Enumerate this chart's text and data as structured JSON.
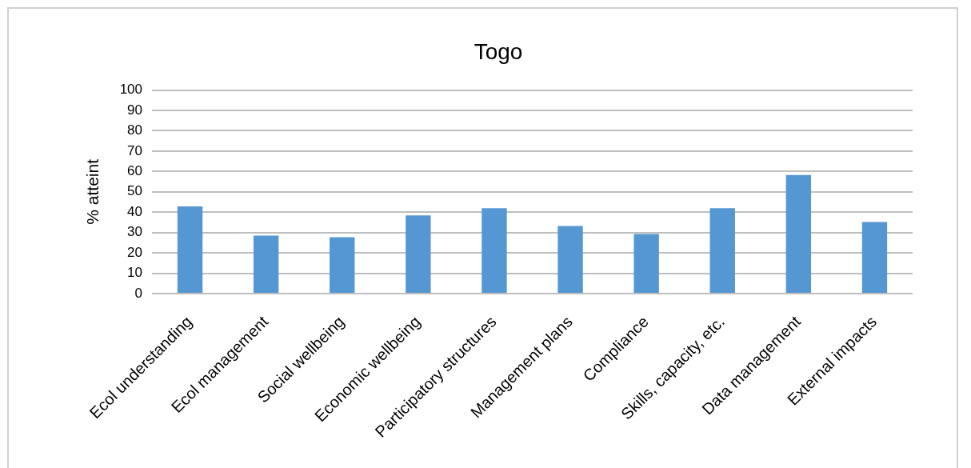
{
  "chart_data": {
    "type": "bar",
    "title": "Togo",
    "ylabel": "% atteint",
    "categories": [
      "Ecol understanding",
      "Ecol management",
      "Social wellbeing",
      "Economic wellbeing",
      "Participatory structures",
      "Management plans",
      "Compliance",
      "Skills, capacity, etc.",
      "Data management",
      "External impacts"
    ],
    "values": [
      42.8,
      28.5,
      27.7,
      38.4,
      42.0,
      33.2,
      29.3,
      42.0,
      58.3,
      35.2
    ],
    "color": "#5597d3",
    "ylim": [
      0,
      100
    ],
    "yticks": [
      0,
      10,
      20,
      30,
      40,
      50,
      60,
      70,
      80,
      90,
      100
    ],
    "grid": "y"
  }
}
